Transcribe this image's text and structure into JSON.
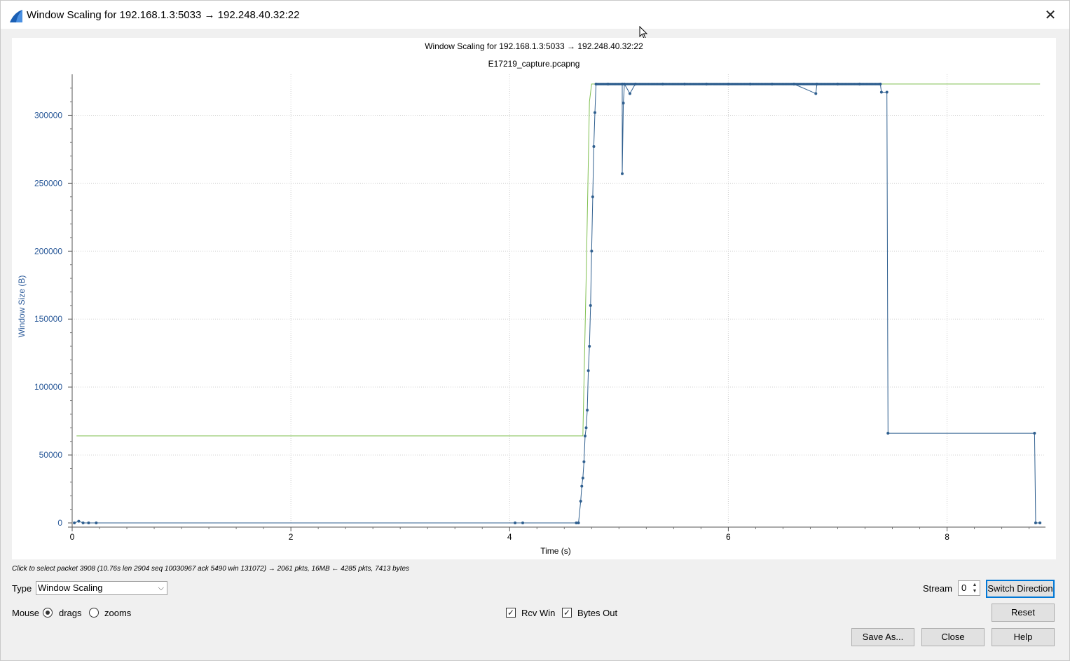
{
  "window": {
    "title": "Window Scaling for 192.168.1.3:5033 → 192.248.40.32:22",
    "close_symbol": "✕"
  },
  "icons": {
    "app": "wireshark-fin-icon",
    "close": "close-icon",
    "cursor": "mouse-pointer-icon",
    "combo_arrow": "chevron-down-icon",
    "spin_up": "spin-up-icon",
    "spin_down": "spin-down-icon"
  },
  "colors": {
    "series_rcv_win": "#7fbf4f",
    "series_bytes_out": "#2f5f8f",
    "axis_label": "#2c5b9a",
    "accent": "#0078d7"
  },
  "chart_data": {
    "type": "line",
    "title": "Window Scaling for 192.168.1.3:5033 → 192.248.40.32:22",
    "subtitle": "E17219_capture.pcapng",
    "xlabel": "Time (s)",
    "ylabel": "Window Size (B)",
    "xlim": [
      0,
      8.9
    ],
    "ylim": [
      0,
      325000
    ],
    "xticks": [
      "0",
      "2",
      "4",
      "6",
      "8"
    ],
    "yticks": [
      "0",
      "50000",
      "100000",
      "150000",
      "200000",
      "250000",
      "300000"
    ],
    "grid": true,
    "series": [
      {
        "name": "Rcv Win",
        "style": "line",
        "points": [
          [
            0.04,
            64000
          ],
          [
            4.66,
            64000
          ],
          [
            4.67,
            64000
          ],
          [
            4.7,
            180000
          ],
          [
            4.73,
            310000
          ],
          [
            4.75,
            323000
          ],
          [
            8.85,
            323000
          ]
        ]
      },
      {
        "name": "Bytes Out",
        "style": "step-markers",
        "points": [
          [
            0.02,
            0
          ],
          [
            0.06,
            1200
          ],
          [
            0.1,
            0
          ],
          [
            0.15,
            0
          ],
          [
            0.22,
            0
          ],
          [
            4.05,
            0
          ],
          [
            4.12,
            0
          ],
          [
            4.61,
            0
          ],
          [
            4.63,
            0
          ],
          [
            4.65,
            16000
          ],
          [
            4.66,
            27000
          ],
          [
            4.67,
            33000
          ],
          [
            4.68,
            45000
          ],
          [
            4.69,
            64000
          ],
          [
            4.7,
            70000
          ],
          [
            4.71,
            83000
          ],
          [
            4.72,
            112000
          ],
          [
            4.73,
            130000
          ],
          [
            4.74,
            160000
          ],
          [
            4.75,
            200000
          ],
          [
            4.76,
            240000
          ],
          [
            4.77,
            277000
          ],
          [
            4.78,
            302000
          ],
          [
            4.79,
            323000
          ],
          [
            4.9,
            323000
          ],
          [
            5.03,
            323000
          ],
          [
            5.03,
            257000
          ],
          [
            5.04,
            309000
          ],
          [
            5.05,
            323000
          ],
          [
            5.1,
            316000
          ],
          [
            5.15,
            323000
          ],
          [
            5.4,
            323000
          ],
          [
            5.6,
            323000
          ],
          [
            5.8,
            323000
          ],
          [
            6.0,
            323000
          ],
          [
            6.2,
            323000
          ],
          [
            6.4,
            323000
          ],
          [
            6.6,
            323000
          ],
          [
            6.8,
            316000
          ],
          [
            6.81,
            323000
          ],
          [
            7.0,
            323000
          ],
          [
            7.2,
            323000
          ],
          [
            7.39,
            323000
          ],
          [
            7.4,
            317000
          ],
          [
            7.45,
            317000
          ],
          [
            7.46,
            66000
          ],
          [
            8.8,
            66000
          ],
          [
            8.81,
            0
          ],
          [
            8.85,
            0
          ]
        ]
      }
    ]
  },
  "status": {
    "text": "Click to select packet 3908 (10.76s len 2904 seq 10030967 ack 5490 win 131072) → 2061 pkts, 16MB ← 4285 pkts, 7413 bytes"
  },
  "controls": {
    "type_label": "Type",
    "type_value": "Window Scaling",
    "stream_label": "Stream",
    "stream_value": "0",
    "switch_direction": "Switch Direction",
    "mouse_label": "Mouse",
    "mouse_drags": "drags",
    "mouse_zooms": "zooms",
    "rcv_win": "Rcv Win",
    "bytes_out": "Bytes Out",
    "check_symbol": "✓",
    "reset": "Reset",
    "save_as": "Save As...",
    "close": "Close",
    "help": "Help"
  }
}
